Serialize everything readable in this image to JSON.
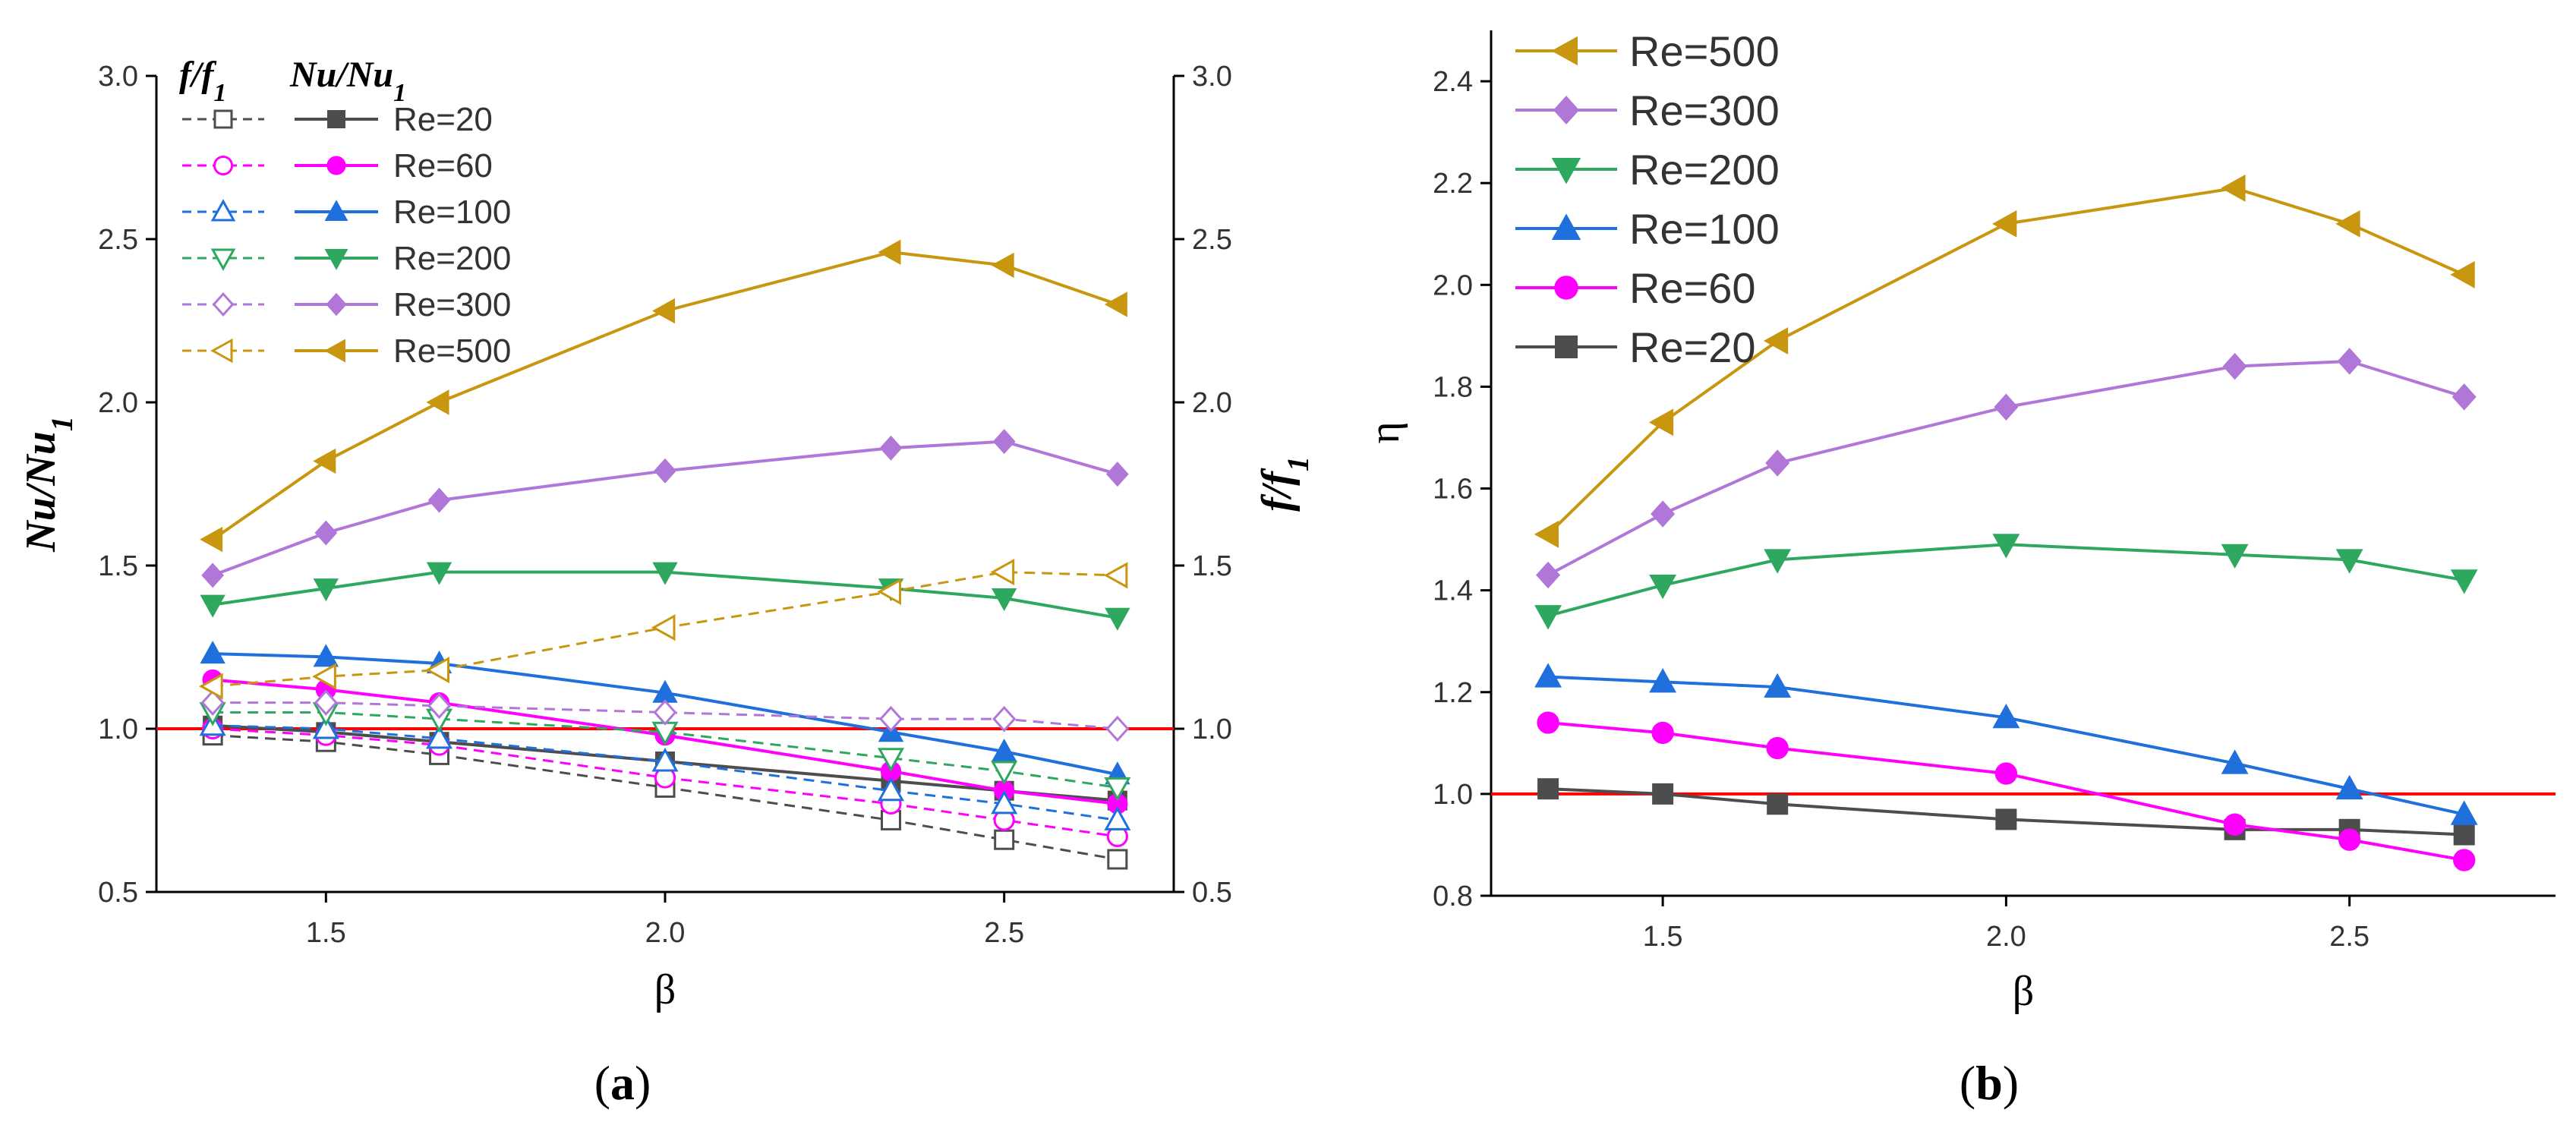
{
  "chart_data": [
    {
      "type": "line",
      "panel_label": "(a)",
      "panel_letter": "a",
      "xlabel": "β",
      "ylabel_left": "Nu/Nu1",
      "ylabel_right": "f/f1",
      "ylim_left": [
        0.5,
        3.0
      ],
      "ylim_right": [
        0.5,
        3.0
      ],
      "xlim": [
        1.25,
        2.75
      ],
      "xticks": [
        "1.5",
        "2.0",
        "2.5"
      ],
      "xtick_values": [
        1.5,
        2.0,
        2.5
      ],
      "yticks_left": [
        "0.5",
        "1.0",
        "1.5",
        "2.0",
        "2.5",
        "3.0"
      ],
      "yticks_right": [
        "0.5",
        "1.0",
        "1.5",
        "2.0",
        "2.5",
        "3.0"
      ],
      "ytick_values": [
        0.5,
        1.0,
        1.5,
        2.0,
        2.5,
        3.0
      ],
      "reference_line": 1.0,
      "legend_header_f": "f/f1",
      "legend_header_nu": "Nu/Nu1",
      "x": [
        1.333,
        1.5,
        1.667,
        2.0,
        2.333,
        2.5,
        2.667
      ],
      "series": [
        {
          "name": "Re=20",
          "color": "#4d4d4d",
          "marker": "square",
          "nu": [
            1.01,
            0.99,
            0.96,
            0.9,
            0.84,
            0.81,
            0.78
          ],
          "f": [
            0.98,
            0.96,
            0.92,
            0.82,
            0.72,
            0.66,
            0.6
          ]
        },
        {
          "name": "Re=60",
          "color": "#ff00ff",
          "marker": "circle",
          "nu": [
            1.15,
            1.12,
            1.08,
            0.98,
            0.87,
            0.81,
            0.77
          ],
          "f": [
            1.0,
            0.98,
            0.95,
            0.85,
            0.77,
            0.72,
            0.67
          ]
        },
        {
          "name": "Re=100",
          "color": "#1f6fdc",
          "marker": "triangle-up",
          "nu": [
            1.23,
            1.22,
            1.2,
            1.11,
            0.99,
            0.93,
            0.86
          ],
          "f": [
            1.01,
            1.0,
            0.97,
            0.9,
            0.81,
            0.77,
            0.72
          ]
        },
        {
          "name": "Re=200",
          "color": "#2fa85f",
          "marker": "triangle-down",
          "nu": [
            1.38,
            1.43,
            1.48,
            1.48,
            1.43,
            1.4,
            1.34
          ],
          "f": [
            1.05,
            1.05,
            1.03,
            0.99,
            0.91,
            0.87,
            0.82
          ]
        },
        {
          "name": "Re=300",
          "color": "#b076d8",
          "marker": "diamond",
          "nu": [
            1.47,
            1.6,
            1.7,
            1.79,
            1.86,
            1.88,
            1.78
          ],
          "f": [
            1.08,
            1.08,
            1.07,
            1.05,
            1.03,
            1.03,
            1.0
          ]
        },
        {
          "name": "Re=500",
          "color": "#c8960f",
          "marker": "triangle-left",
          "nu": [
            1.58,
            1.82,
            2.0,
            2.28,
            2.46,
            2.42,
            2.3
          ],
          "f": [
            1.13,
            1.16,
            1.18,
            1.31,
            1.42,
            1.48,
            1.47
          ]
        }
      ]
    },
    {
      "type": "line",
      "panel_label": "(b)",
      "panel_letter": "b",
      "xlabel": "β",
      "ylabel": "η",
      "ylim": [
        0.8,
        2.5
      ],
      "xlim": [
        1.25,
        2.8
      ],
      "xticks": [
        "1.5",
        "2.0",
        "2.5"
      ],
      "xtick_values": [
        1.5,
        2.0,
        2.5
      ],
      "yticks": [
        "0.8",
        "1.0",
        "1.2",
        "1.4",
        "1.6",
        "1.8",
        "2.0",
        "2.2",
        "2.4"
      ],
      "ytick_values": [
        0.8,
        1.0,
        1.2,
        1.4,
        1.6,
        1.8,
        2.0,
        2.2,
        2.4
      ],
      "reference_line": 1.0,
      "x": [
        1.333,
        1.5,
        1.667,
        2.0,
        2.333,
        2.5,
        2.667
      ],
      "series": [
        {
          "name": "Re=500",
          "color": "#c8960f",
          "marker": "triangle-left",
          "values": [
            1.51,
            1.73,
            1.89,
            2.12,
            2.19,
            2.12,
            2.02
          ]
        },
        {
          "name": "Re=300",
          "color": "#b076d8",
          "marker": "diamond",
          "values": [
            1.43,
            1.55,
            1.65,
            1.76,
            1.84,
            1.85,
            1.78
          ]
        },
        {
          "name": "Re=200",
          "color": "#2fa85f",
          "marker": "triangle-down",
          "values": [
            1.35,
            1.41,
            1.46,
            1.49,
            1.47,
            1.46,
            1.42
          ]
        },
        {
          "name": "Re=100",
          "color": "#1f6fdc",
          "marker": "triangle-up",
          "values": [
            1.23,
            1.22,
            1.21,
            1.15,
            1.06,
            1.01,
            0.96
          ]
        },
        {
          "name": "Re=60",
          "color": "#ff00ff",
          "marker": "circle",
          "values": [
            1.14,
            1.12,
            1.09,
            1.04,
            0.94,
            0.91,
            0.87
          ]
        },
        {
          "name": "Re=20",
          "color": "#4d4d4d",
          "marker": "square",
          "values": [
            1.01,
            1.0,
            0.98,
            0.95,
            0.93,
            0.93,
            0.92
          ]
        }
      ]
    }
  ]
}
